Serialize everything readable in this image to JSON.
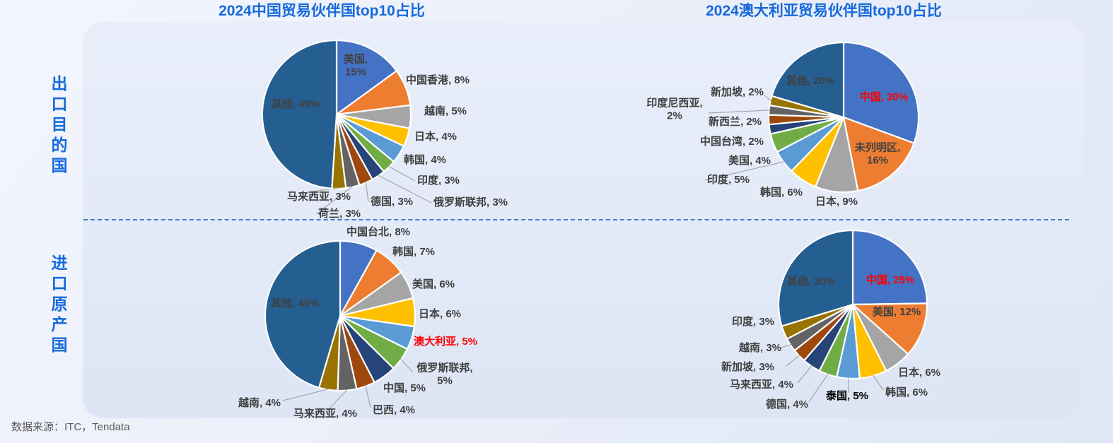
{
  "rows": {
    "export_label": "出口目的国",
    "import_label": "进口原产国"
  },
  "source": "数据来源：ITC，Tendata",
  "colors": {
    "palette": [
      "#4472C4",
      "#ED7D31",
      "#A5A5A5",
      "#FFC000",
      "#5B9BD5",
      "#70AD47",
      "#264478",
      "#9E480E",
      "#636363",
      "#997300",
      "#255E91"
    ],
    "title_blue": "#1569dc",
    "label_dark": "#404040",
    "highlight_red": "#FF0000",
    "highlight_black": "#000000",
    "leader_gray": "#A6A6A6"
  },
  "chart_data": [
    {
      "type": "pie",
      "title": "2024中国贸易伙伴国top10占比",
      "row": "出口目的国",
      "slices": [
        {
          "label": "美国",
          "value": 15
        },
        {
          "label": "中国香港",
          "value": 8
        },
        {
          "label": "越南",
          "value": 5
        },
        {
          "label": "日本",
          "value": 4
        },
        {
          "label": "韩国",
          "value": 4
        },
        {
          "label": "印度",
          "value": 3
        },
        {
          "label": "俄罗斯联邦",
          "value": 3
        },
        {
          "label": "德国",
          "value": 3
        },
        {
          "label": "荷兰",
          "value": 3
        },
        {
          "label": "马来西亚",
          "value": 3
        },
        {
          "label": "其他",
          "value": 49
        }
      ]
    },
    {
      "type": "pie",
      "title": "2024澳大利亚贸易伙伴国top10占比",
      "row": "出口目的国",
      "slices": [
        {
          "label": "中国",
          "value": 30,
          "emphasis": "red"
        },
        {
          "label": "未列明区",
          "value": 16
        },
        {
          "label": "日本",
          "value": 9
        },
        {
          "label": "韩国",
          "value": 6
        },
        {
          "label": "印度",
          "value": 5
        },
        {
          "label": "美国",
          "value": 4
        },
        {
          "label": "中国台湾",
          "value": 2
        },
        {
          "label": "新西兰",
          "value": 2
        },
        {
          "label": "印度尼西亚",
          "value": 2
        },
        {
          "label": "新加坡",
          "value": 2
        },
        {
          "label": "其他",
          "value": 20
        }
      ]
    },
    {
      "type": "pie",
      "row": "进口原产国",
      "slices": [
        {
          "label": "中国台北",
          "value": 8
        },
        {
          "label": "韩国",
          "value": 7
        },
        {
          "label": "美国",
          "value": 6
        },
        {
          "label": "日本",
          "value": 6
        },
        {
          "label": "澳大利亚",
          "value": 5,
          "emphasis": "red"
        },
        {
          "label": "俄罗斯联邦",
          "value": 5
        },
        {
          "label": "中国",
          "value": 5
        },
        {
          "label": "巴西",
          "value": 4
        },
        {
          "label": "马来西亚",
          "value": 4
        },
        {
          "label": "越南",
          "value": 4
        },
        {
          "label": "其他",
          "value": 45
        }
      ]
    },
    {
      "type": "pie",
      "row": "进口原产国",
      "slices": [
        {
          "label": "中国",
          "value": 25,
          "emphasis": "red"
        },
        {
          "label": "美国",
          "value": 12
        },
        {
          "label": "日本",
          "value": 6
        },
        {
          "label": "韩国",
          "value": 6
        },
        {
          "label": "泰国",
          "value": 5,
          "emphasis": "bold-black"
        },
        {
          "label": "德国",
          "value": 4
        },
        {
          "label": "马来西亚",
          "value": 4
        },
        {
          "label": "新加坡",
          "value": 3
        },
        {
          "label": "越南",
          "value": 3
        },
        {
          "label": "印度",
          "value": 3
        },
        {
          "label": "其他",
          "value": 30
        }
      ]
    }
  ]
}
